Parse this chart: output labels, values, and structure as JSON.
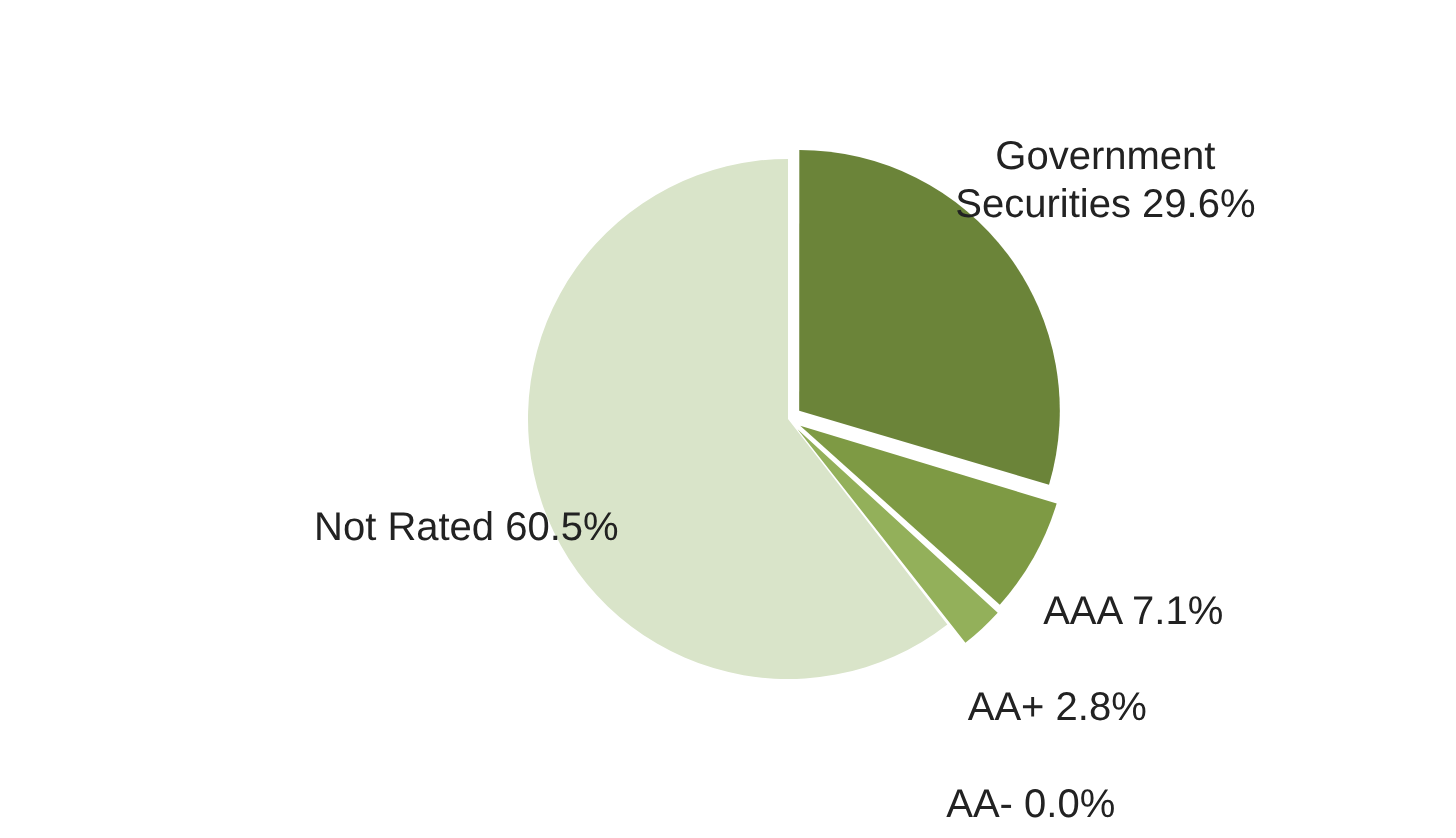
{
  "chart_data": {
    "type": "pie",
    "categories": [
      "Government Securities",
      "AAA",
      "AA+",
      "AA-",
      "Not Rated"
    ],
    "values": [
      29.6,
      7.1,
      2.8,
      0.0,
      60.5
    ],
    "colors": [
      "#6b8439",
      "#7e9a44",
      "#93b05a",
      "#a9c276",
      "#d9e4c9"
    ],
    "value_labels": [
      "29.6%",
      "7.1%",
      "2.8%",
      "0.0%",
      "60.5%"
    ],
    "legend": false
  }
}
